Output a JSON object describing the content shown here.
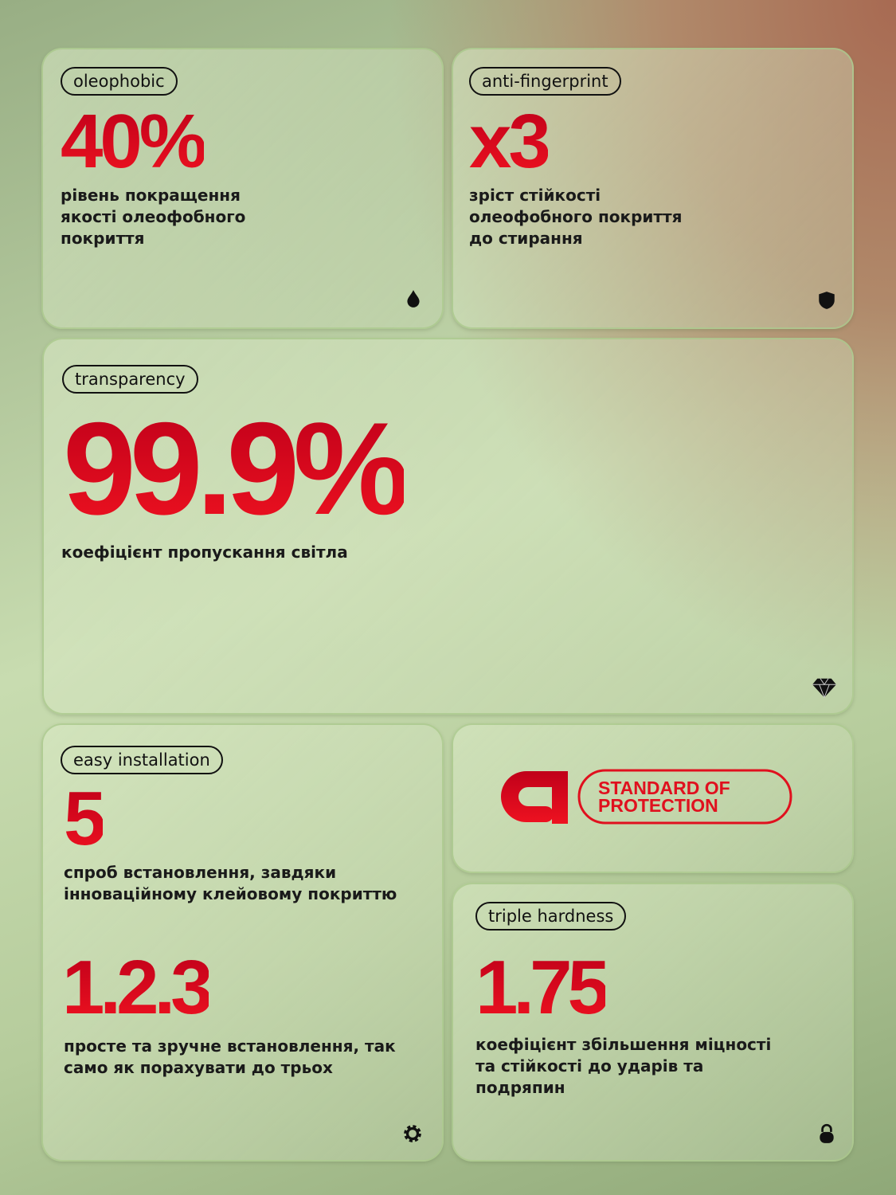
{
  "cards": [
    {
      "tag": "oleophobic",
      "value": "40%",
      "desc": "рівень покращення\nякості олеофобного\nпокриття",
      "icon": "drop-icon"
    },
    {
      "tag": "anti-fingerprint",
      "value": "x3",
      "desc": "зріст стійкості\nолеофобного покриття\nдо стирання",
      "icon": "shield-icon"
    },
    {
      "tag": "transparency",
      "value": "99.9%",
      "desc": "коефіцієнт пропускання світла",
      "icon": "diamond-icon"
    },
    {
      "tag": "easy installation",
      "value": "5",
      "desc": "спроб встановлення, завдяки\nінноваційному клейовому покриттю",
      "value2": "1.2.3",
      "desc2": "просте та зручне встановлення, так\nсамо як порахувати до трьох",
      "icon": "gear-icon"
    },
    {
      "tag": "triple hardness",
      "value": "1.75",
      "desc": "коефіцієнт збільшення міцності\nта стійкості до ударів та\nподряпин",
      "icon": "lock-icon"
    }
  ],
  "logo": {
    "text": "STANDARD OF PROTECTION",
    "color": "#e0101e"
  },
  "colors": {
    "accent": "#d80a1c"
  }
}
